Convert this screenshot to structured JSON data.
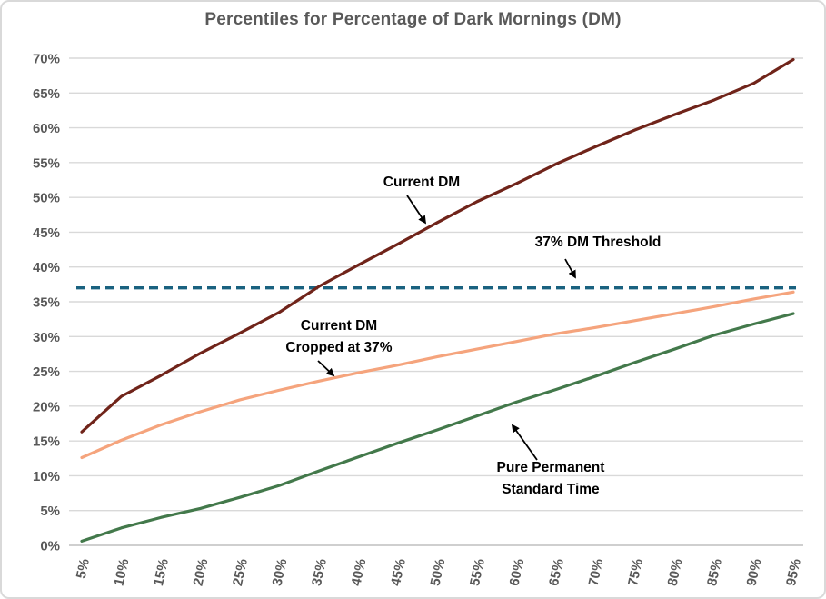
{
  "title": "Percentiles for Percentage of Dark Mornings (DM)",
  "chart_data": {
    "type": "line",
    "title": "Percentiles for Percentage of Dark Mornings (DM)",
    "xlabel": "",
    "ylabel": "",
    "x": [
      5,
      10,
      15,
      20,
      25,
      30,
      35,
      40,
      45,
      50,
      55,
      60,
      65,
      70,
      75,
      80,
      85,
      90,
      95
    ],
    "x_tick_suffix": "%",
    "y_tick_suffix": "%",
    "ylim": [
      0,
      70
    ],
    "ytick_step": 5,
    "grid": "horizontal",
    "legend_position": "none",
    "series": [
      {
        "id": "current-dm",
        "name": "Current DM",
        "color": "#70241A",
        "values": [
          16.3,
          21.4,
          24.4,
          27.6,
          30.5,
          33.5,
          37.2,
          40.3,
          43.3,
          46.4,
          49.4,
          52.0,
          54.8,
          57.3,
          59.7,
          61.9,
          64.0,
          66.4,
          69.8
        ]
      },
      {
        "id": "current-dm-cropped",
        "name": "Current DM Cropped at 37%",
        "color": "#F5A47D",
        "values": [
          12.6,
          15.1,
          17.3,
          19.2,
          20.9,
          22.3,
          23.6,
          24.8,
          25.9,
          27.1,
          28.2,
          29.3,
          30.4,
          31.3,
          32.3,
          33.3,
          34.3,
          35.4,
          36.4
        ]
      },
      {
        "id": "permanent-standard-time",
        "name": "Pure Permanent Standard Time",
        "color": "#43794B",
        "values": [
          0.6,
          2.5,
          4.0,
          5.3,
          6.9,
          8.6,
          10.7,
          12.7,
          14.7,
          16.6,
          18.6,
          20.6,
          22.4,
          24.3,
          26.3,
          28.2,
          30.2,
          31.8,
          33.3
        ]
      }
    ],
    "threshold_line": {
      "label": "37% DM Threshold",
      "value": 37,
      "style": "dashed",
      "color": "#1A6280"
    }
  },
  "annotations": {
    "current_dm": {
      "text": "Current DM"
    },
    "threshold": {
      "text": "37% DM Threshold"
    },
    "cropped": {
      "line1": "Current DM",
      "line2": "Cropped at 37%"
    },
    "standard_time": {
      "line1": "Pure Permanent",
      "line2": "Standard Time"
    }
  },
  "style": {
    "title_color": "#595959",
    "axis_label_color": "#595959",
    "gridline_color": "#D9D9D9",
    "axis_line_color": "#BFBFBF",
    "annotation_color": "#000000",
    "background": "#FFFFFF",
    "border_color": "#D9D9D9"
  }
}
